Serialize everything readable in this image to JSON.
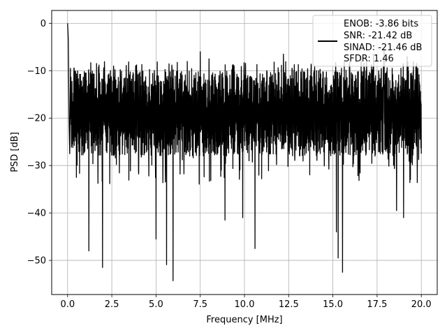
{
  "chart_data": {
    "type": "line",
    "xlabel": "Frequency [MHz]",
    "ylabel": "PSD [dB]",
    "xlim": [
      -0.9,
      20.9
    ],
    "ylim": [
      -57.2,
      2.7
    ],
    "x_ticks": [
      0.0,
      2.5,
      5.0,
      7.5,
      10.0,
      12.5,
      15.0,
      17.5,
      20.0
    ],
    "x_tick_labels": [
      "0.0",
      "2.5",
      "5.0",
      "7.5",
      "10.0",
      "12.5",
      "15.0",
      "17.5",
      "20.0"
    ],
    "y_ticks": [
      0,
      -10,
      -20,
      -30,
      -40,
      -50
    ],
    "y_tick_labels": [
      "0",
      "−10",
      "−20",
      "−30",
      "−40",
      "−50"
    ],
    "grid": true,
    "legend_position": "top-right",
    "legend_entries": [
      "ENOB: -3.86 bits",
      "SNR: -21.42 dB",
      "SINAD: -21.46 dB",
      "SFDR: 1.46"
    ],
    "series": [
      {
        "color": "#000000",
        "start_points": [
          [
            0.0,
            0.0
          ],
          [
            0.04,
            -3.5
          ],
          [
            0.08,
            -20.0
          ],
          [
            0.12,
            -27.5
          ],
          [
            0.16,
            -9.5
          ]
        ],
        "x_range": [
          0.0,
          20.0
        ],
        "typical_range_db": [
          -28,
          -10
        ],
        "noise_floor_mean_db": -20,
        "peak_points": [
          [
            1.0,
            -10.5
          ],
          [
            2.6,
            -9.0
          ],
          [
            5.9,
            -9.5
          ],
          [
            7.5,
            -6.0
          ],
          [
            8.0,
            -7.5
          ],
          [
            12.2,
            -6.5
          ],
          [
            16.6,
            -7.0
          ],
          [
            17.3,
            -6.5
          ],
          [
            17.9,
            -5.5
          ],
          [
            19.2,
            -7.0
          ]
        ],
        "dip_points": [
          [
            0.5,
            -32.5
          ],
          [
            1.2,
            -48.0
          ],
          [
            1.98,
            -51.5
          ],
          [
            5.0,
            -45.5
          ],
          [
            5.6,
            -50.9
          ],
          [
            5.96,
            -54.3
          ],
          [
            10.6,
            -47.5
          ],
          [
            15.3,
            -49.5
          ],
          [
            15.55,
            -52.5
          ],
          [
            15.2,
            -44.0
          ],
          [
            19.0,
            -41.0
          ],
          [
            18.6,
            -39.5
          ],
          [
            9.9,
            -41.0
          ],
          [
            8.9,
            -41.5
          ]
        ]
      }
    ]
  }
}
